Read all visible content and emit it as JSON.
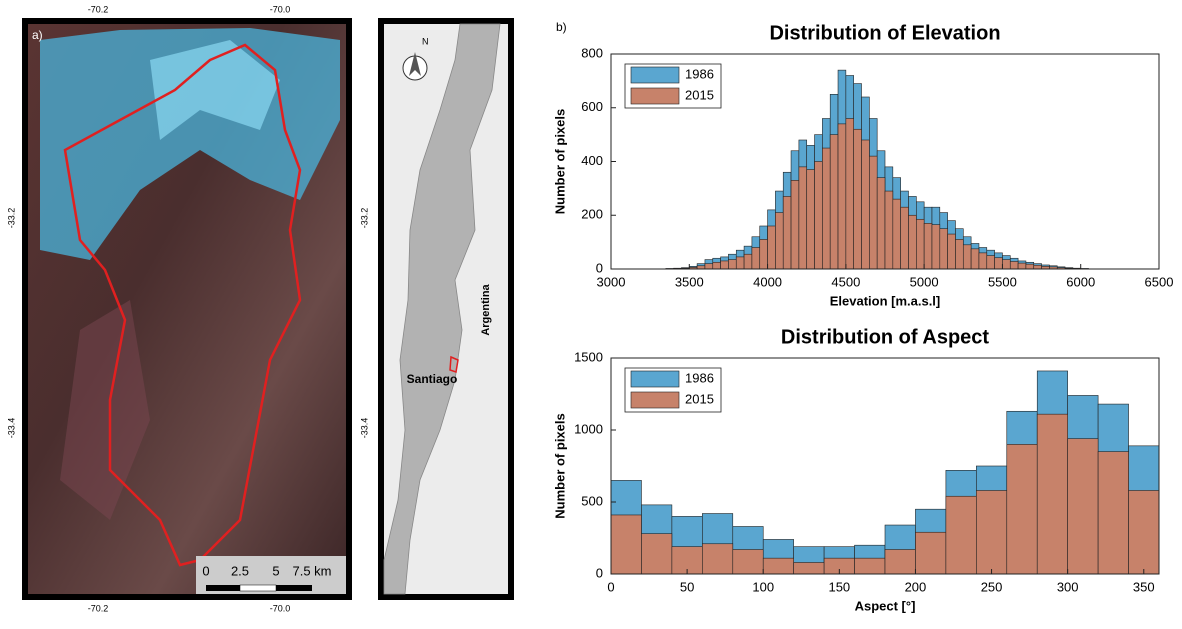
{
  "panel_a": {
    "label": "a)",
    "lon_left": "-70.2",
    "lon_right": "-70.0",
    "lat_top": "-33.2",
    "lat_bottom": "-33.4",
    "scale_0": "0",
    "scale_1": "2.5",
    "scale_2": "5",
    "scale_3": "7.5 km",
    "north": "N",
    "country": "Argentina",
    "city": "Santiago"
  },
  "panel_b": {
    "label": "b)"
  },
  "chart_data": [
    {
      "type": "histogram",
      "title": "Distribution of Elevation",
      "x_label": "Elevation [m.a.s.l]",
      "y_label": "Number of pixels",
      "bins": [
        3350,
        3400,
        3450,
        3500,
        3550,
        3600,
        3650,
        3700,
        3750,
        3800,
        3850,
        3900,
        3950,
        4000,
        4050,
        4100,
        4150,
        4200,
        4250,
        4300,
        4350,
        4400,
        4450,
        4500,
        4550,
        4600,
        4650,
        4700,
        4750,
        4800,
        4850,
        4900,
        4950,
        5000,
        5050,
        5100,
        5150,
        5200,
        5250,
        5300,
        5350,
        5400,
        5450,
        5500,
        5550,
        5600,
        5650,
        5700,
        5750,
        5800,
        5850,
        5900,
        5950,
        6000,
        6050
      ],
      "series": [
        {
          "name": "1986",
          "color": "#5aa6d0",
          "values": [
            2,
            3,
            5,
            10,
            20,
            35,
            40,
            45,
            55,
            70,
            85,
            120,
            160,
            220,
            290,
            360,
            440,
            480,
            460,
            500,
            560,
            650,
            740,
            720,
            690,
            640,
            560,
            440,
            380,
            340,
            290,
            270,
            250,
            230,
            230,
            210,
            180,
            150,
            120,
            95,
            80,
            70,
            60,
            50,
            40,
            30,
            25,
            20,
            15,
            12,
            8,
            5,
            3,
            2
          ]
        },
        {
          "name": "2015",
          "color": "#c7826a",
          "values": [
            1,
            2,
            3,
            6,
            12,
            20,
            25,
            30,
            35,
            45,
            55,
            80,
            110,
            160,
            210,
            270,
            330,
            380,
            370,
            400,
            450,
            500,
            540,
            560,
            520,
            480,
            420,
            340,
            290,
            260,
            230,
            200,
            185,
            170,
            165,
            150,
            130,
            110,
            90,
            75,
            60,
            50,
            42,
            35,
            28,
            22,
            18,
            14,
            10,
            8,
            5,
            3,
            2,
            1
          ]
        }
      ],
      "xlim": [
        3000,
        6500
      ],
      "xticks": [
        3000,
        3500,
        4000,
        4500,
        5000,
        5500,
        6000,
        6500
      ],
      "ylim": [
        0,
        800
      ],
      "yticks": [
        0,
        200,
        400,
        600,
        800
      ],
      "legend": "upper left"
    },
    {
      "type": "histogram",
      "title": "Distribution of Aspect",
      "x_label": "Aspect [°]",
      "y_label": "Number of pixels",
      "bins": [
        0,
        20,
        40,
        60,
        80,
        100,
        120,
        140,
        160,
        180,
        200,
        220,
        240,
        260,
        280,
        300,
        320,
        340,
        360
      ],
      "series": [
        {
          "name": "1986",
          "color": "#5aa6d0",
          "values": [
            650,
            480,
            400,
            420,
            330,
            240,
            190,
            190,
            200,
            340,
            450,
            720,
            750,
            1130,
            1410,
            1240,
            1180,
            890
          ]
        },
        {
          "name": "2015",
          "color": "#c7826a",
          "values": [
            410,
            280,
            190,
            210,
            170,
            110,
            80,
            110,
            110,
            170,
            290,
            540,
            580,
            900,
            1110,
            940,
            850,
            580
          ]
        }
      ],
      "xlim": [
        0,
        360
      ],
      "xticks": [
        0,
        50,
        100,
        150,
        200,
        250,
        300,
        350
      ],
      "ylim": [
        0,
        1500
      ],
      "yticks": [
        0,
        500,
        1000,
        1500
      ],
      "legend": "upper left"
    }
  ]
}
